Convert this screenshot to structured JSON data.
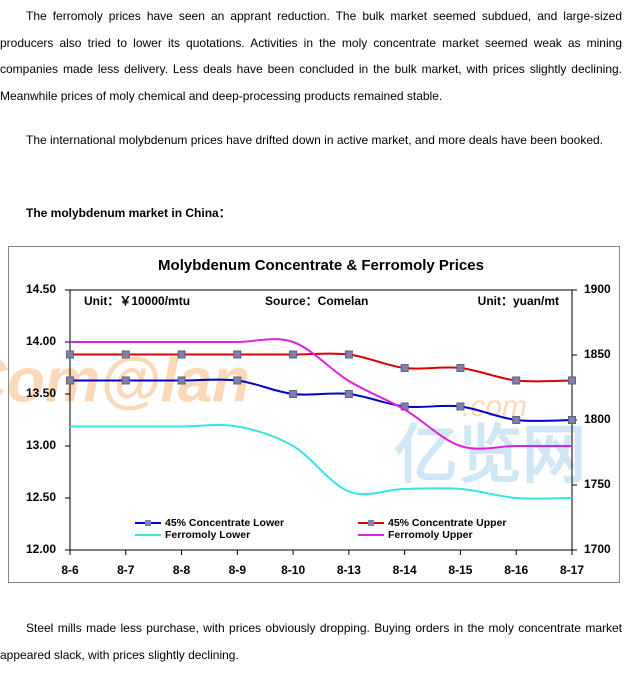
{
  "paragraphs": [
    "The ferromoly prices have seen an apprant reduction. The bulk market seemed subdued, and large-sized producers also tried to lower its quotations. Activities in the moly concentrate market seemed weak as mining companies made less delivery. Less deals have been concluded in the bulk market, with prices slightly declining. Meanwhile prices of moly chemical and deep-processing products remained stable.",
    "The international molybdenum prices have drifted down in active market, and more deals have been booked."
  ],
  "heading": "The molybdenum market in China：",
  "closing": "Steel mills made less purchase, with prices obviously dropping. Buying orders in the moly concentrate market appeared slack, with prices slightly declining.",
  "chart_data": {
    "type": "line",
    "title": "Molybdenum Concentrate & Ferromoly Prices",
    "annotations": [
      "Unit：￥10000/mtu",
      "Source：Comelan",
      "Unit：yuan/mt"
    ],
    "watermark": [
      "Com@lan",
      ".com",
      "亿览网"
    ],
    "categories": [
      "8-6",
      "8-7",
      "8-8",
      "8-9",
      "8-10",
      "8-13",
      "8-14",
      "8-15",
      "8-16",
      "8-17"
    ],
    "ylim": [
      12,
      14.5
    ],
    "yticks": [
      {
        "value": 12,
        "label": "12.00"
      },
      {
        "value": 12.5,
        "label": "12.50"
      },
      {
        "value": 13,
        "label": "13.00"
      },
      {
        "value": 13.5,
        "label": "13.50"
      },
      {
        "value": 14,
        "label": "14.00"
      },
      {
        "value": 14.5,
        "label": "14.50"
      }
    ],
    "y2lim": [
      1700,
      1900
    ],
    "y2ticks": [
      1700,
      1750,
      1800,
      1850,
      1900
    ],
    "grid": false,
    "series": [
      {
        "name": "45% Concentrate Lower",
        "color": "#0000cc",
        "marker": "square",
        "values": [
          13.63,
          13.63,
          13.63,
          13.63,
          13.5,
          13.5,
          13.38,
          13.38,
          13.25,
          13.25
        ]
      },
      {
        "name": "45% Concentrate Upper",
        "color": "#dd0000",
        "marker": "square",
        "values": [
          13.88,
          13.88,
          13.88,
          13.88,
          13.88,
          13.88,
          13.75,
          13.75,
          13.63,
          13.63
        ]
      },
      {
        "name": "Ferromoly Lower",
        "color": "#33e6e6",
        "axis": "y2",
        "values": [
          1795,
          1795,
          1795,
          1795,
          1780,
          1745,
          1747,
          1747,
          1740,
          1740
        ]
      },
      {
        "name": "Ferromoly Upper",
        "color": "#dd22dd",
        "axis": "y2",
        "values": [
          1860,
          1860,
          1860,
          1860,
          1860,
          1830,
          1808,
          1780,
          1780,
          1780
        ]
      }
    ]
  }
}
